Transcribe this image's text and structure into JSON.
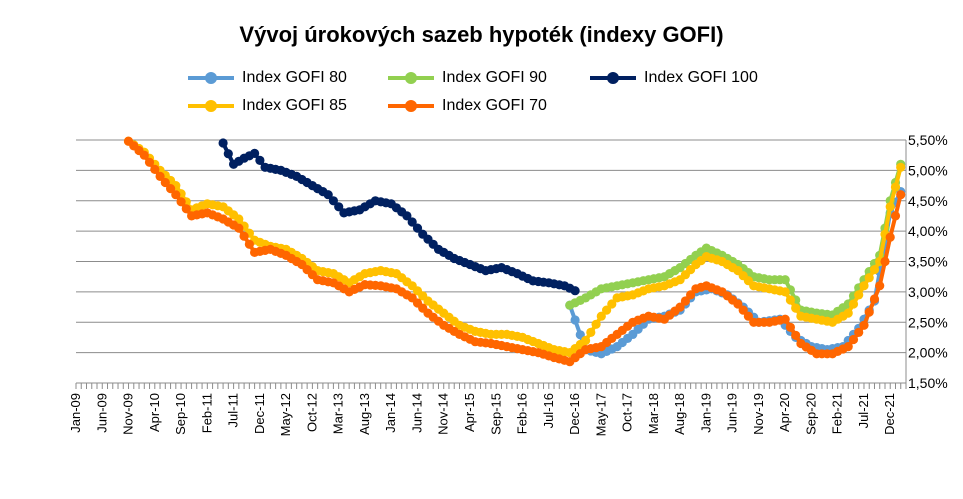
{
  "chart_data": {
    "type": "line",
    "title": "Vývoj úrokových sazeb hypoték (indexy GOFI)",
    "xlabel": "",
    "ylabel": "",
    "ylim": [
      0.015,
      0.055
    ],
    "y_ticks": [
      "1,50%",
      "2,00%",
      "2,50%",
      "3,00%",
      "3,50%",
      "4,00%",
      "4,50%",
      "5,00%",
      "5,50%"
    ],
    "x_ticks": [
      "Jan-09",
      "Jun-09",
      "Nov-09",
      "Apr-10",
      "Sep-10",
      "Feb-11",
      "Jul-11",
      "Dec-11",
      "May-12",
      "Oct-12",
      "Mar-13",
      "Aug-13",
      "Jan-14",
      "Jun-14",
      "Nov-14",
      "Apr-15",
      "Sep-15",
      "Feb-16",
      "Jul-16",
      "Dec-16",
      "May-17",
      "Oct-17",
      "Mar-18",
      "Aug-18",
      "Jan-19",
      "Jun-19",
      "Nov-19",
      "Apr-20",
      "Sep-20",
      "Feb-21",
      "Jul-21",
      "Dec-21"
    ],
    "x_start": "2009-01",
    "grid": true,
    "legend_position": "top",
    "series": [
      {
        "name": "Index GOFI 80",
        "color": "#5b9bd5",
        "points": [
          [
            "2016-11",
            0.0278
          ],
          [
            "2017-02",
            0.0205
          ],
          [
            "2017-05",
            0.0198
          ],
          [
            "2017-08",
            0.021
          ],
          [
            "2017-11",
            0.023
          ],
          [
            "2018-02",
            0.0255
          ],
          [
            "2018-05",
            0.026
          ],
          [
            "2018-08",
            0.027
          ],
          [
            "2018-11",
            0.03
          ],
          [
            "2019-02",
            0.0305
          ],
          [
            "2019-05",
            0.0295
          ],
          [
            "2019-08",
            0.0275
          ],
          [
            "2019-11",
            0.025
          ],
          [
            "2020-03",
            0.0255
          ],
          [
            "2020-06",
            0.0225
          ],
          [
            "2020-09",
            0.021
          ],
          [
            "2020-12",
            0.0205
          ],
          [
            "2021-03",
            0.021
          ],
          [
            "2021-06",
            0.024
          ],
          [
            "2021-09",
            0.0285
          ],
          [
            "2021-12",
            0.043
          ],
          [
            "2022-02",
            0.0465
          ]
        ]
      },
      {
        "name": "Index GOFI 90",
        "color": "#92d050",
        "points": [
          [
            "2016-11",
            0.0278
          ],
          [
            "2017-02",
            0.029
          ],
          [
            "2017-05",
            0.0305
          ],
          [
            "2017-08",
            0.031
          ],
          [
            "2017-11",
            0.0315
          ],
          [
            "2018-02",
            0.032
          ],
          [
            "2018-05",
            0.0325
          ],
          [
            "2018-08",
            0.034
          ],
          [
            "2018-11",
            0.036
          ],
          [
            "2019-01",
            0.0372
          ],
          [
            "2019-04",
            0.036
          ],
          [
            "2019-07",
            0.0345
          ],
          [
            "2019-10",
            0.0325
          ],
          [
            "2020-01",
            0.032
          ],
          [
            "2020-04",
            0.032
          ],
          [
            "2020-07",
            0.027
          ],
          [
            "2020-10",
            0.0265
          ],
          [
            "2021-01",
            0.0262
          ],
          [
            "2021-04",
            0.028
          ],
          [
            "2021-07",
            0.032
          ],
          [
            "2021-10",
            0.036
          ],
          [
            "2021-12",
            0.045
          ],
          [
            "2022-02",
            0.051
          ]
        ]
      },
      {
        "name": "Index GOFI 100",
        "color": "#002060",
        "points": [
          [
            "2011-05",
            0.0545
          ],
          [
            "2011-07",
            0.051
          ],
          [
            "2011-09",
            0.052
          ],
          [
            "2011-11",
            0.0528
          ],
          [
            "2012-01",
            0.0505
          ],
          [
            "2012-04",
            0.05
          ],
          [
            "2012-07",
            0.049
          ],
          [
            "2012-10",
            0.0475
          ],
          [
            "2013-01",
            0.046
          ],
          [
            "2013-04",
            0.043
          ],
          [
            "2013-07",
            0.0435
          ],
          [
            "2013-10",
            0.045
          ],
          [
            "2014-01",
            0.0445
          ],
          [
            "2014-04",
            0.0425
          ],
          [
            "2014-07",
            0.0395
          ],
          [
            "2014-10",
            0.037
          ],
          [
            "2015-01",
            0.0355
          ],
          [
            "2015-04",
            0.0345
          ],
          [
            "2015-07",
            0.0335
          ],
          [
            "2015-10",
            0.034
          ],
          [
            "2016-01",
            0.033
          ],
          [
            "2016-04",
            0.0318
          ],
          [
            "2016-07",
            0.0315
          ],
          [
            "2016-10",
            0.031
          ],
          [
            "2016-12",
            0.0302
          ]
        ]
      },
      {
        "name": "Index GOFI 85",
        "color": "#ffc000",
        "points": [
          [
            "2009-11",
            0.0548
          ],
          [
            "2010-02",
            0.053
          ],
          [
            "2010-05",
            0.05
          ],
          [
            "2010-08",
            0.0475
          ],
          [
            "2010-11",
            0.0435
          ],
          [
            "2011-02",
            0.0445
          ],
          [
            "2011-05",
            0.044
          ],
          [
            "2011-08",
            0.042
          ],
          [
            "2011-11",
            0.0385
          ],
          [
            "2012-02",
            0.0375
          ],
          [
            "2012-05",
            0.037
          ],
          [
            "2012-08",
            0.0355
          ],
          [
            "2012-11",
            0.0335
          ],
          [
            "2013-02",
            0.033
          ],
          [
            "2013-05",
            0.0315
          ],
          [
            "2013-08",
            0.033
          ],
          [
            "2013-11",
            0.0335
          ],
          [
            "2014-02",
            0.033
          ],
          [
            "2014-05",
            0.031
          ],
          [
            "2014-08",
            0.0285
          ],
          [
            "2014-11",
            0.0265
          ],
          [
            "2015-02",
            0.0245
          ],
          [
            "2015-05",
            0.0235
          ],
          [
            "2015-08",
            0.023
          ],
          [
            "2015-11",
            0.023
          ],
          [
            "2016-02",
            0.0225
          ],
          [
            "2016-05",
            0.0215
          ],
          [
            "2016-08",
            0.0205
          ],
          [
            "2016-11",
            0.02
          ],
          [
            "2017-02",
            0.022
          ],
          [
            "2017-05",
            0.026
          ],
          [
            "2017-08",
            0.029
          ],
          [
            "2017-11",
            0.0295
          ],
          [
            "2018-02",
            0.0305
          ],
          [
            "2018-05",
            0.031
          ],
          [
            "2018-08",
            0.032
          ],
          [
            "2018-11",
            0.0345
          ],
          [
            "2019-01",
            0.0358
          ],
          [
            "2019-04",
            0.035
          ],
          [
            "2019-07",
            0.0335
          ],
          [
            "2019-10",
            0.031
          ],
          [
            "2020-01",
            0.0305
          ],
          [
            "2020-04",
            0.03
          ],
          [
            "2020-07",
            0.026
          ],
          [
            "2020-10",
            0.0255
          ],
          [
            "2021-01",
            0.025
          ],
          [
            "2021-04",
            0.0265
          ],
          [
            "2021-07",
            0.031
          ],
          [
            "2021-10",
            0.035
          ],
          [
            "2021-12",
            0.044
          ],
          [
            "2022-02",
            0.0505
          ]
        ]
      },
      {
        "name": "Index GOFI 70",
        "color": "#ff6600",
        "points": [
          [
            "2009-11",
            0.0548
          ],
          [
            "2010-02",
            0.0525
          ],
          [
            "2010-05",
            0.049
          ],
          [
            "2010-08",
            0.046
          ],
          [
            "2010-11",
            0.0425
          ],
          [
            "2011-02",
            0.043
          ],
          [
            "2011-05",
            0.042
          ],
          [
            "2011-08",
            0.0405
          ],
          [
            "2011-11",
            0.0365
          ],
          [
            "2012-02",
            0.037
          ],
          [
            "2012-05",
            0.036
          ],
          [
            "2012-08",
            0.0345
          ],
          [
            "2012-11",
            0.032
          ],
          [
            "2013-02",
            0.0315
          ],
          [
            "2013-05",
            0.03
          ],
          [
            "2013-08",
            0.0312
          ],
          [
            "2013-11",
            0.031
          ],
          [
            "2014-02",
            0.0305
          ],
          [
            "2014-05",
            0.029
          ],
          [
            "2014-08",
            0.0265
          ],
          [
            "2014-11",
            0.0245
          ],
          [
            "2015-02",
            0.023
          ],
          [
            "2015-05",
            0.0218
          ],
          [
            "2015-08",
            0.0215
          ],
          [
            "2015-11",
            0.021
          ],
          [
            "2016-02",
            0.0205
          ],
          [
            "2016-05",
            0.02
          ],
          [
            "2016-08",
            0.0192
          ],
          [
            "2016-11",
            0.0185
          ],
          [
            "2017-02",
            0.0205
          ],
          [
            "2017-05",
            0.021
          ],
          [
            "2017-08",
            0.023
          ],
          [
            "2017-11",
            0.025
          ],
          [
            "2018-02",
            0.026
          ],
          [
            "2018-05",
            0.0255
          ],
          [
            "2018-08",
            0.0275
          ],
          [
            "2018-11",
            0.0305
          ],
          [
            "2019-01",
            0.031
          ],
          [
            "2019-04",
            0.03
          ],
          [
            "2019-07",
            0.028
          ],
          [
            "2019-10",
            0.025
          ],
          [
            "2020-01",
            0.025
          ],
          [
            "2020-04",
            0.0255
          ],
          [
            "2020-07",
            0.0215
          ],
          [
            "2020-10",
            0.0198
          ],
          [
            "2021-01",
            0.0198
          ],
          [
            "2021-04",
            0.021
          ],
          [
            "2021-07",
            0.0245
          ],
          [
            "2021-10",
            0.031
          ],
          [
            "2021-12",
            0.039
          ],
          [
            "2022-02",
            0.046
          ]
        ]
      }
    ]
  }
}
